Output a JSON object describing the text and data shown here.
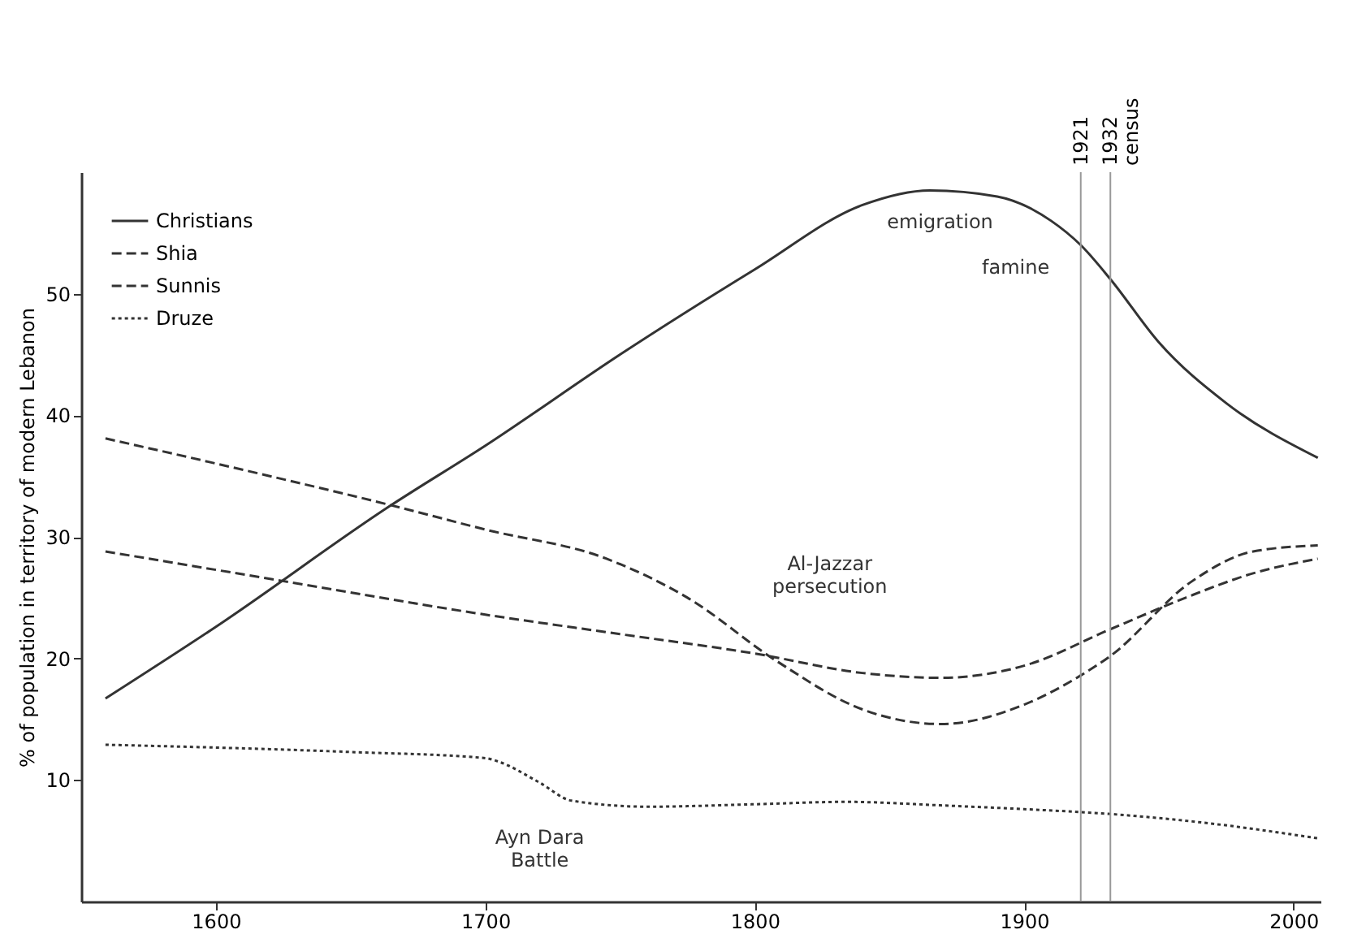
{
  "chart_data": {
    "type": "line",
    "ylabel": "% of population in territory of modern Lebanon",
    "xlim": [
      1550,
      2010
    ],
    "xticks": [
      1600,
      1700,
      1800,
      1900,
      2000
    ],
    "ylim": [
      0,
      60
    ],
    "yticks": [
      10,
      20,
      30,
      40,
      50
    ],
    "grid": false,
    "legend": "top left",
    "series": [
      {
        "name": "Christians",
        "color": "#333333",
        "line_style": "solid",
        "x": [
          1559,
          1600,
          1665,
          1700,
          1750,
          1800,
          1840,
          1865,
          1890,
          1910,
          1921,
          1932,
          1950,
          1975,
          2009
        ],
        "values": [
          16.7,
          22.6,
          32.6,
          37.5,
          45,
          52,
          57.3,
          58.5,
          58,
          56,
          54,
          51.2,
          46,
          41,
          36.5
        ]
      },
      {
        "name": "Shia",
        "color": "#333333",
        "line_style": "dashed",
        "x": [
          1559,
          1620,
          1665,
          1700,
          1745,
          1775,
          1808,
          1840,
          1869,
          1900,
          1921,
          1932,
          1962,
          1985,
          2009
        ],
        "values": [
          38.1,
          35,
          32.6,
          30.6,
          28.2,
          25,
          19.8,
          15.8,
          14.6,
          16.2,
          18.6,
          20.2,
          26.3,
          28.8,
          29.3
        ]
      },
      {
        "name": "Sunnis",
        "color": "#333333",
        "line_style": "dashed",
        "x": [
          1559,
          1624,
          1700,
          1750,
          1800,
          1840,
          1869,
          1900,
          1932,
          1960,
          1985,
          2009
        ],
        "values": [
          28.8,
          26.4,
          23.6,
          22,
          20.4,
          18.8,
          18.4,
          19.4,
          22.4,
          25,
          27,
          28.2
        ]
      },
      {
        "name": "Druze",
        "color": "#333333",
        "line_style": "dotted",
        "x": [
          1559,
          1650,
          1700,
          1705,
          1720,
          1732,
          1760,
          1800,
          1834,
          1870,
          1900,
          1932,
          1970,
          2009
        ],
        "values": [
          12.9,
          12.3,
          11.8,
          11.5,
          9.8,
          8.3,
          7.8,
          8,
          8.2,
          7.9,
          7.6,
          7.2,
          6.4,
          5.2
        ]
      }
    ],
    "ref_lines": [
      {
        "axis": "x",
        "value": 1921,
        "label": "1921",
        "color": "#999999"
      },
      {
        "axis": "x",
        "value": 1932,
        "label": "1932 census",
        "color": "#999999"
      }
    ],
    "annotations": [
      "emigration",
      "famine",
      "Al-Jazzar\npersecution",
      "Ayn Dara\nBattle"
    ]
  }
}
